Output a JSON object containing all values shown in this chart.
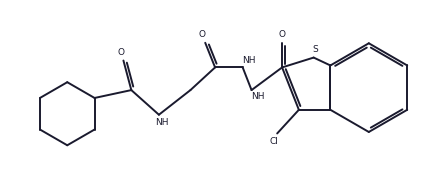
{
  "bg_color": "#ffffff",
  "line_color": "#1a1a2e",
  "line_width": 1.4,
  "figsize": [
    4.42,
    1.92
  ],
  "dpi": 100,
  "xlim": [
    0,
    44.2
  ],
  "ylim": [
    0,
    19.2
  ]
}
